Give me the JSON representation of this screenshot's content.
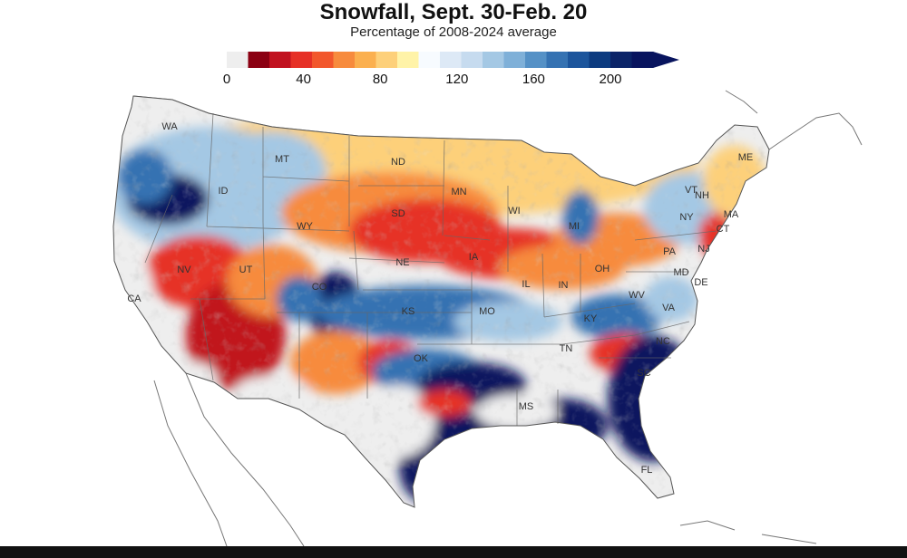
{
  "map": {
    "title": "Snowfall, Sept. 30-Feb. 20",
    "subtitle": "Percentage of 2008-2024 average"
  },
  "legend": {
    "ticks": [
      "0",
      "40",
      "80",
      "120",
      "160",
      "200"
    ],
    "colors": [
      "#eeeeee",
      "#8b0012",
      "#c1121f",
      "#e63026",
      "#f2572c",
      "#f78b3d",
      "#fbb04f",
      "#fdd07a",
      "#fff3a8",
      "#f7fbff",
      "#dde9f6",
      "#c6dbef",
      "#a4c8e4",
      "#7fb0d8",
      "#5591c6",
      "#3572b2",
      "#1c559c",
      "#0c3b80",
      "#0b2468",
      "#08145e"
    ],
    "overflow_color": "#08145e"
  },
  "palette": {
    "red_deep": "#c1121f",
    "red": "#e63026",
    "orange": "#f78b3d",
    "yellow": "#fdd07a",
    "pale": "#fff3a8",
    "light_blue": "#a4c8e4",
    "blue": "#3572b2",
    "navy": "#08145e",
    "no_data": "#eeeeee"
  },
  "states": [
    {
      "abbr": "WA"
    },
    {
      "abbr": "ID"
    },
    {
      "abbr": "MT"
    },
    {
      "abbr": "ND"
    },
    {
      "abbr": "MN"
    },
    {
      "abbr": "SD"
    },
    {
      "abbr": "WY"
    },
    {
      "abbr": "WI"
    },
    {
      "abbr": "MI"
    },
    {
      "abbr": "NE"
    },
    {
      "abbr": "IA"
    },
    {
      "abbr": "NV"
    },
    {
      "abbr": "UT"
    },
    {
      "abbr": "CO"
    },
    {
      "abbr": "CA"
    },
    {
      "abbr": "KS"
    },
    {
      "abbr": "MO"
    },
    {
      "abbr": "IL"
    },
    {
      "abbr": "IN"
    },
    {
      "abbr": "OH"
    },
    {
      "abbr": "KY"
    },
    {
      "abbr": "WV"
    },
    {
      "abbr": "VA"
    },
    {
      "abbr": "OK"
    },
    {
      "abbr": "TN"
    },
    {
      "abbr": "NC"
    },
    {
      "abbr": "SC"
    },
    {
      "abbr": "MS"
    },
    {
      "abbr": "FL"
    },
    {
      "abbr": "PA"
    },
    {
      "abbr": "NY"
    },
    {
      "abbr": "ME"
    },
    {
      "abbr": "VT"
    },
    {
      "abbr": "NH"
    },
    {
      "abbr": "MA"
    },
    {
      "abbr": "CT"
    },
    {
      "abbr": "NJ"
    },
    {
      "abbr": "MD"
    },
    {
      "abbr": "DE"
    }
  ]
}
